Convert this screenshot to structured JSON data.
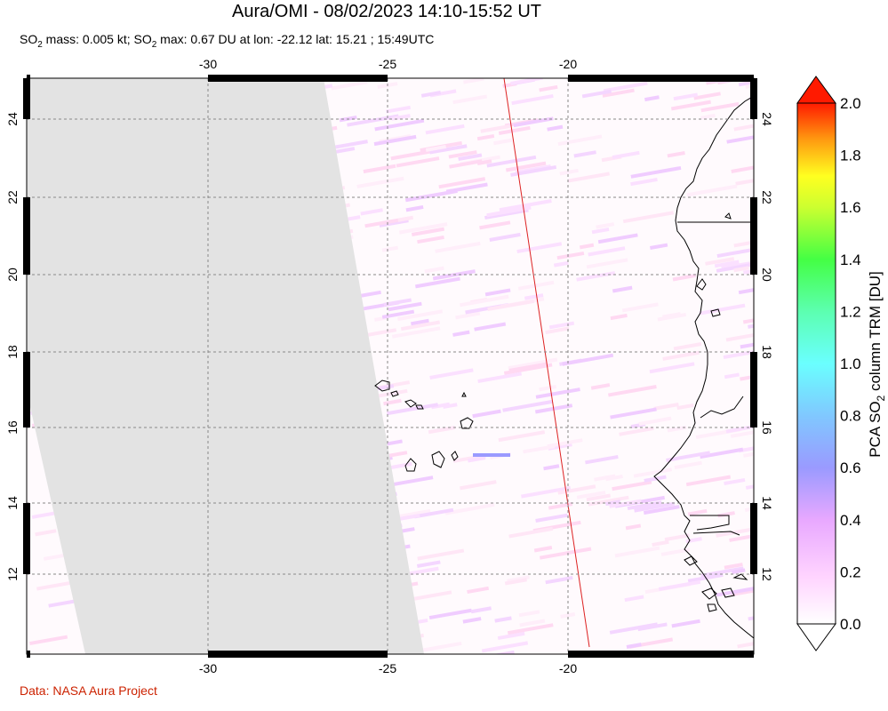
{
  "title": "Aura/OMI - 08/02/2023 14:10-15:52 UT",
  "subtitle": {
    "part1": "SO",
    "sub1": "2",
    "part2": " mass: 0.005 kt; SO",
    "sub2": "2",
    "part3": " max: 0.67 DU at lon: -22.12 lat: 15.21 ; 15:49UTC"
  },
  "credit": "Data: NASA Aura Project",
  "map": {
    "lon_range": [
      -35,
      -15
    ],
    "lat_range": [
      10,
      25
    ],
    "lon_ticks": [
      -30,
      -25,
      -20
    ],
    "lat_ticks": [
      12,
      14,
      16,
      18,
      20,
      22,
      24
    ],
    "lon_tick_labels": [
      "-30",
      "-25",
      "-20"
    ],
    "lat_tick_labels": [
      "12",
      "14",
      "16",
      "18",
      "20",
      "22",
      "24"
    ],
    "grid": "dashed",
    "no_data_color": "#e3e3e3",
    "orbit_line_color": "#dd2222",
    "max_marker": {
      "lon": -22.12,
      "lat": 15.21,
      "value": 0.67
    }
  },
  "colorbar": {
    "title_main": "PCA SO",
    "title_sub": "2",
    "title_rest": " column TRM [DU]",
    "range": [
      0.0,
      2.0
    ],
    "tick_labels": [
      "0.0",
      "0.2",
      "0.4",
      "0.6",
      "0.8",
      "1.0",
      "1.2",
      "1.4",
      "1.6",
      "1.8",
      "2.0"
    ],
    "colors": [
      "#ffffff",
      "#ffd0ff",
      "#e8a8ff",
      "#9a9aff",
      "#7ad4ff",
      "#6affff",
      "#5cffaa",
      "#44ff44",
      "#c8ff30",
      "#ffff20",
      "#ffaa10",
      "#ff5a08",
      "#ff1a00"
    ]
  }
}
